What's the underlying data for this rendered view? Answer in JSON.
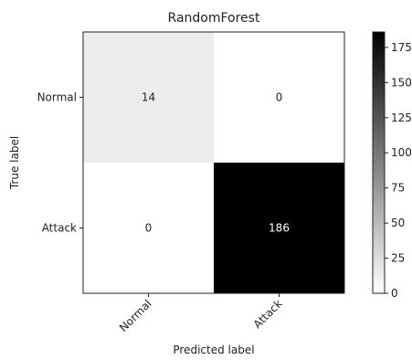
{
  "chart_data": {
    "type": "heatmap",
    "title": "RandomForest",
    "xlabel": "Predicted label",
    "ylabel": "True label",
    "x_categories": [
      "Normal",
      "Attack"
    ],
    "y_categories": [
      "Normal",
      "Attack"
    ],
    "values": [
      [
        14,
        0
      ],
      [
        0,
        186
      ]
    ],
    "colormap": "greys",
    "colorbar": {
      "range": [
        0,
        186
      ],
      "ticks": [
        0,
        25,
        50,
        75,
        100,
        125,
        150,
        175
      ]
    }
  }
}
